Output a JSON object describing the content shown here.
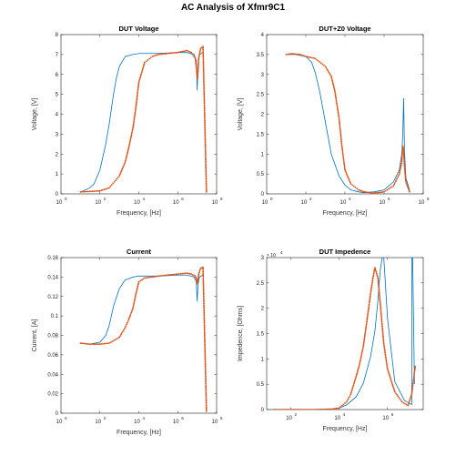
{
  "figure_title": "AC Analysis of Xfmr9C1",
  "colors": {
    "simulated": "#0072BD",
    "measured": "#D95319"
  },
  "chart_data": [
    {
      "type": "line",
      "title": "DUT Voltage",
      "xlabel": "Frequency, [Hz]",
      "ylabel": "Voltage, [V]",
      "xscale": "log",
      "xlim": [
        1,
        100000000
      ],
      "ylim": [
        0,
        8
      ],
      "x_ticks": [
        "10",
        "10",
        "10",
        "10",
        "10"
      ],
      "x_tick_exps": [
        "0",
        "2",
        "4",
        "6",
        "8"
      ],
      "y_ticks": [
        "0",
        "1",
        "2",
        "3",
        "4",
        "5",
        "6",
        "7",
        "8"
      ],
      "series": [
        {
          "style": "line",
          "color": "#0072BD",
          "x": [
            10,
            30,
            50,
            100,
            200,
            300,
            500,
            700,
            1000,
            2000,
            5000,
            10000,
            100000,
            1000000,
            3000000,
            7000000,
            9000000,
            10000000,
            11000000,
            13000000,
            20000000
          ],
          "y": [
            0.08,
            0.3,
            0.5,
            1.2,
            2.5,
            3.5,
            5.0,
            5.8,
            6.4,
            6.9,
            7.0,
            7.05,
            7.05,
            7.1,
            7.1,
            7.0,
            6.7,
            5.2,
            6.5,
            7.0,
            7.1
          ]
        },
        {
          "style": "markers",
          "color": "#D95319",
          "x": [
            10,
            30,
            100,
            300,
            1000,
            2000,
            3000,
            5000,
            7000,
            10000,
            20000,
            50000,
            100000,
            300000,
            1000000,
            3000000,
            5000000,
            8000000,
            9500000,
            10500000,
            12000000,
            15000000,
            20000000,
            30000000
          ],
          "y": [
            0.1,
            0.12,
            0.15,
            0.3,
            0.9,
            1.6,
            2.3,
            3.3,
            4.3,
            5.6,
            6.6,
            6.9,
            7.0,
            7.05,
            7.1,
            7.2,
            7.1,
            6.8,
            6.2,
            5.8,
            6.8,
            7.3,
            7.4,
            0.1
          ]
        }
      ]
    },
    {
      "type": "line",
      "title": "DUT+Z0 Voltage",
      "xlabel": "Frequency, [Hz]",
      "ylabel": "Voltage, [V]",
      "xscale": "log",
      "xlim": [
        1,
        100000000
      ],
      "ylim": [
        0,
        4
      ],
      "x_ticks": [
        "10",
        "10",
        "10",
        "10",
        "10"
      ],
      "x_tick_exps": [
        "0",
        "2",
        "4",
        "6",
        "8"
      ],
      "y_ticks": [
        "0",
        "0.5",
        "1",
        "1.5",
        "2",
        "2.5",
        "3",
        "3.5",
        "4"
      ],
      "series": [
        {
          "style": "line",
          "color": "#0072BD",
          "x": [
            10,
            30,
            100,
            200,
            300,
            500,
            1000,
            2000,
            5000,
            10000,
            20000,
            50000,
            100000,
            300000,
            1000000,
            3000000,
            6000000,
            8000000,
            9000000,
            10000000,
            11000000,
            13000000,
            20000000
          ],
          "y": [
            3.5,
            3.5,
            3.45,
            3.3,
            3.05,
            2.6,
            1.8,
            1.0,
            0.45,
            0.22,
            0.1,
            0.05,
            0.03,
            0.05,
            0.1,
            0.3,
            0.6,
            1.0,
            1.5,
            2.4,
            1.1,
            0.4,
            0.1
          ]
        },
        {
          "style": "markers",
          "color": "#D95319",
          "x": [
            10,
            20,
            50,
            100,
            300,
            1000,
            2000,
            3000,
            5000,
            7000,
            10000,
            20000,
            50000,
            100000,
            300000,
            1000000,
            3000000,
            6000000,
            8000000,
            9000000,
            10000000,
            11000000,
            13000000,
            20000000
          ],
          "y": [
            3.5,
            3.52,
            3.5,
            3.45,
            3.4,
            3.2,
            2.95,
            2.6,
            1.9,
            1.2,
            0.6,
            0.25,
            0.1,
            0.05,
            0.02,
            0.05,
            0.2,
            0.5,
            0.8,
            1.2,
            1.1,
            0.7,
            0.3,
            0.05
          ]
        }
      ]
    },
    {
      "type": "line",
      "title": "Current",
      "xlabel": "Frequency, [Hz]",
      "ylabel": "Current, [A]",
      "xscale": "log",
      "xlim": [
        1,
        100000000
      ],
      "ylim": [
        0,
        0.16
      ],
      "x_ticks": [
        "10",
        "10",
        "10",
        "10",
        "10"
      ],
      "x_tick_exps": [
        "0",
        "2",
        "4",
        "6",
        "8"
      ],
      "y_ticks": [
        "0",
        "0.02",
        "0.04",
        "0.06",
        "0.08",
        "0.1",
        "0.12",
        "0.14",
        "0.16"
      ],
      "series": [
        {
          "style": "line",
          "color": "#0072BD",
          "x": [
            10,
            30,
            100,
            200,
            300,
            500,
            1000,
            2000,
            5000,
            10000,
            100000,
            1000000,
            3000000,
            7000000,
            9000000,
            10000000,
            11000000,
            13000000,
            20000000
          ],
          "y": [
            0.072,
            0.071,
            0.073,
            0.08,
            0.09,
            0.11,
            0.128,
            0.137,
            0.14,
            0.141,
            0.141,
            0.142,
            0.142,
            0.14,
            0.135,
            0.115,
            0.132,
            0.14,
            0.142
          ]
        },
        {
          "style": "markers",
          "color": "#D95319",
          "x": [
            10,
            30,
            100,
            300,
            1000,
            2000,
            3000,
            5000,
            7000,
            10000,
            20000,
            50000,
            100000,
            300000,
            1000000,
            3000000,
            5000000,
            8000000,
            9500000,
            10500000,
            12000000,
            15000000,
            20000000,
            30000000
          ],
          "y": [
            0.072,
            0.071,
            0.071,
            0.072,
            0.078,
            0.088,
            0.096,
            0.108,
            0.122,
            0.135,
            0.139,
            0.14,
            0.141,
            0.142,
            0.143,
            0.144,
            0.143,
            0.141,
            0.137,
            0.133,
            0.143,
            0.149,
            0.15,
            0.002
          ]
        }
      ]
    },
    {
      "type": "line",
      "title": "DUT Impedence",
      "xlabel": "Frequency, [Hz]",
      "ylabel": "Impedence, [Ohms]",
      "xscale": "log",
      "xlim": [
        10,
        30000000
      ],
      "ylim": [
        0,
        30000
      ],
      "y_multiplier": "× 10",
      "y_multiplier_exp": "4",
      "x_ticks": [
        "10",
        "10",
        "10"
      ],
      "x_tick_exps": [
        "2",
        "4",
        "6"
      ],
      "y_ticks": [
        "0",
        "0.5",
        "1",
        "1.5",
        "2",
        "2.5",
        "3"
      ],
      "series": [
        {
          "style": "line",
          "color": "#0072BD",
          "x": [
            10,
            100,
            1000,
            5000,
            10000,
            20000,
            50000,
            100000,
            200000,
            300000,
            400000,
            500000,
            600000,
            700000,
            1000000,
            2000000,
            5000000,
            10000000,
            10100000,
            11000000,
            13000000
          ],
          "y": [
            0,
            0,
            0,
            100,
            300,
            900,
            2500,
            5200,
            10500,
            15500,
            21500,
            27500,
            30000,
            30000,
            18000,
            5500,
            1800,
            1000,
            30000,
            30000,
            5000
          ]
        },
        {
          "style": "markers",
          "color": "#D95319",
          "x": [
            20,
            100,
            1000,
            5000,
            10000,
            20000,
            30000,
            50000,
            70000,
            100000,
            150000,
            200000,
            250000,
            300000,
            400000,
            500000,
            700000,
            1000000,
            2000000,
            4000000,
            7000000,
            10000000,
            12000000,
            14000000
          ],
          "y": [
            0,
            0,
            0,
            100,
            300,
            1500,
            3000,
            6500,
            9000,
            12500,
            18500,
            23000,
            26000,
            28000,
            26000,
            21000,
            13000,
            8000,
            3500,
            1500,
            800,
            3000,
            6000,
            8500
          ]
        }
      ]
    }
  ]
}
